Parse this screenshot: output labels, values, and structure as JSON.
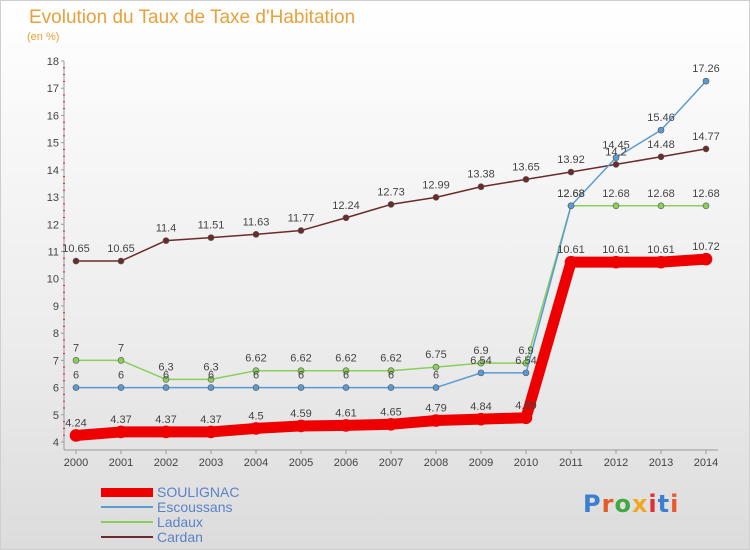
{
  "title": "Evolution du Taux de Taxe d'Habitation",
  "subtitle": "(en %)",
  "logo": {
    "text": "Proxiti",
    "colors": [
      "#3b7fd0",
      "#e85a2a",
      "#43a843",
      "#f0a820",
      "#e03030",
      "#3b7fd0",
      "#e85a2a"
    ]
  },
  "colors": {
    "title": "#e8a13a",
    "axis": "#9a9a9a",
    "label": "#444444"
  },
  "chart_data": {
    "type": "line",
    "title": "Evolution du Taux de Taxe d'Habitation",
    "ylabel": "(en %)",
    "xlabel": "",
    "ylim": [
      4,
      18
    ],
    "yticks": [
      4,
      5,
      6,
      7,
      8,
      9,
      10,
      11,
      12,
      13,
      14,
      15,
      16,
      17,
      18
    ],
    "x": [
      "2000",
      "2001",
      "2002",
      "2003",
      "2004",
      "2005",
      "2006",
      "2007",
      "2008",
      "2009",
      "2010",
      "2011",
      "2012",
      "2013",
      "2014"
    ],
    "legend_position": "bottom-left",
    "grid": false,
    "series": [
      {
        "name": "SOULIGNAC",
        "color": "#ee0000",
        "width": 11,
        "values": [
          4.24,
          4.37,
          4.37,
          4.37,
          4.5,
          4.59,
          4.61,
          4.65,
          4.79,
          4.84,
          4.89,
          10.61,
          10.61,
          10.61,
          10.72
        ],
        "labels": [
          "4.24",
          "4.37",
          "4.37",
          "4.37",
          "4.5",
          "4.59",
          "4.61",
          "4.65",
          "4.79",
          "4.84",
          "4.89",
          "10.61",
          "10.61",
          "10.61",
          "10.72"
        ]
      },
      {
        "name": "Escoussans",
        "color": "#5b9bd5",
        "width": 1.5,
        "values": [
          6,
          6,
          6,
          6,
          6,
          6,
          6,
          6,
          6,
          6.54,
          6.54,
          12.68,
          14.45,
          15.46,
          17.26
        ],
        "labels": [
          "6",
          "6",
          "6",
          "6",
          "6",
          "6",
          "6",
          "6",
          "6",
          "6.54",
          "6.54",
          "12.68",
          "14.45",
          "15.46",
          "17.26"
        ]
      },
      {
        "name": "Ladaux",
        "color": "#88d05a",
        "width": 1.5,
        "values": [
          7,
          7,
          6.3,
          6.3,
          6.62,
          6.62,
          6.62,
          6.62,
          6.75,
          6.9,
          6.9,
          12.68,
          12.68,
          12.68,
          12.68
        ],
        "labels": [
          "7",
          "7",
          "6.3",
          "6.3",
          "6.62",
          "6.62",
          "6.62",
          "6.62",
          "6.75",
          "6.9",
          "6.9",
          "12.68",
          "12.68",
          "12.68",
          "12.68"
        ]
      },
      {
        "name": "Cardan",
        "color": "#6b2b2b",
        "width": 1.5,
        "values": [
          10.65,
          10.65,
          11.4,
          11.51,
          11.63,
          11.77,
          12.24,
          12.73,
          12.99,
          13.38,
          13.65,
          13.92,
          14.2,
          14.48,
          14.77
        ],
        "labels": [
          "10.65",
          "10.65",
          "11.4",
          "11.51",
          "11.63",
          "11.77",
          "12.24",
          "12.73",
          "12.99",
          "13.38",
          "13.65",
          "13.92",
          "14.2",
          "14.48",
          "14.77"
        ]
      }
    ]
  }
}
